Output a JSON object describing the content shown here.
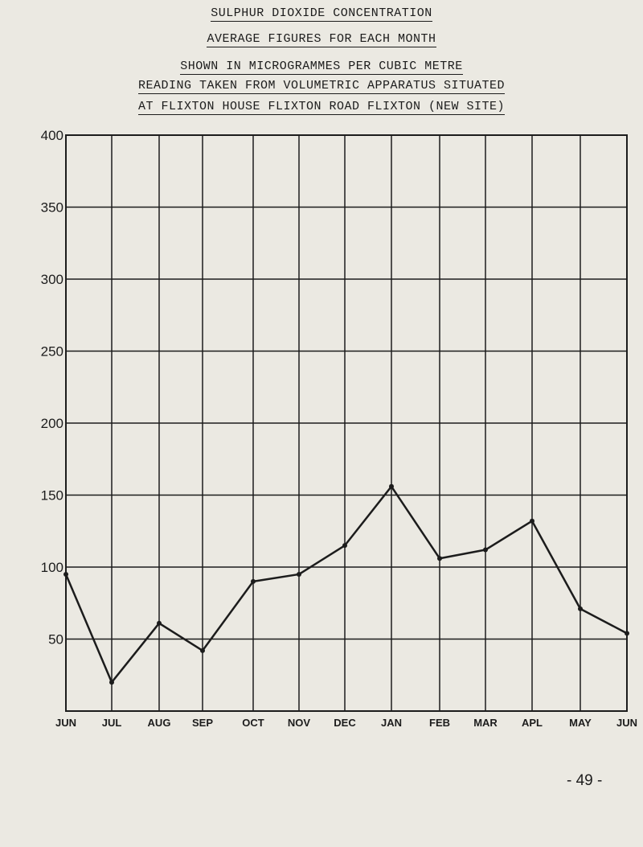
{
  "title": {
    "line1": "SULPHUR DIOXIDE CONCENTRATION",
    "line2": "AVERAGE FIGURES FOR EACH MONTH",
    "line3": "SHOWN IN MICROGRAMMES PER CUBIC METRE",
    "line4": "READING TAKEN FROM VOLUMETRIC APPARATUS SITUATED",
    "line5": "AT FLIXTON HOUSE FLIXTON ROAD FLIXTON (NEW SITE)"
  },
  "page_number": "- 49 -",
  "chart_data": {
    "type": "line",
    "title": "SULPHUR DIOXIDE CONCENTRATION",
    "xlabel": "",
    "ylabel": "",
    "x_tick_labels": [
      "JUN",
      "JUL",
      "AUG",
      "SEP",
      "OCT",
      "NOV",
      "DEC",
      "JAN",
      "FEB",
      "MAR",
      "APL",
      "MAY",
      "JUN"
    ],
    "y_tick_labels": [
      "400",
      "350",
      "300",
      "250",
      "200",
      "150",
      "100",
      "50"
    ],
    "ylim": [
      0,
      400
    ],
    "grid": true,
    "series": [
      {
        "x": [
          "JUN",
          "JUL",
          "AUG",
          "SEP",
          "OCT",
          "NOV",
          "DEC",
          "JAN",
          "FEB",
          "MAR",
          "APL",
          "MAY",
          "JUN"
        ],
        "values": [
          95,
          20,
          61,
          42,
          90,
          95,
          115,
          156,
          106,
          112,
          132,
          71,
          54
        ]
      }
    ]
  }
}
